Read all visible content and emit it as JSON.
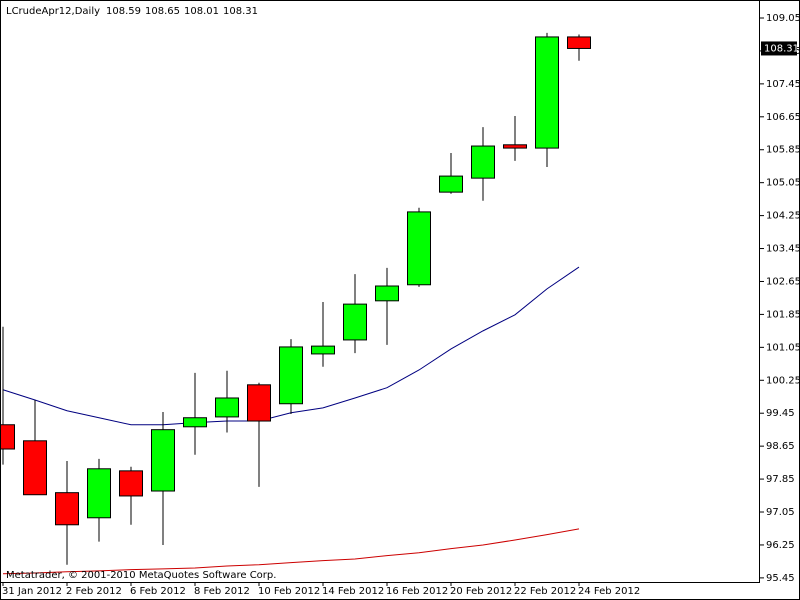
{
  "chart_data": {
    "type": "candlestick",
    "title": "LCrudeApr12,Daily",
    "footer": "Metatrader, © 2001-2010 MetaQuotes Software Corp.",
    "categories": [
      "31 Jan 2012",
      null,
      "2 Feb 2012",
      null,
      "6 Feb 2012",
      null,
      "8 Feb 2012",
      null,
      "10 Feb 2012",
      null,
      "14 Feb 2012",
      null,
      "16 Feb 2012",
      null,
      "20 Feb 2012",
      null,
      "22 Feb 2012",
      null,
      "24 Feb 2012"
    ],
    "open": [
      99.17,
      98.78,
      97.52,
      96.91,
      98.05,
      97.56,
      99.12,
      99.36,
      100.14,
      99.68,
      100.89,
      101.23,
      102.18,
      102.57,
      104.82,
      105.16,
      105.97,
      105.89,
      108.59
    ],
    "high": [
      101.55,
      99.77,
      98.29,
      98.34,
      98.15,
      99.48,
      100.43,
      100.48,
      100.19,
      101.25,
      102.15,
      102.83,
      102.98,
      104.44,
      105.77,
      106.4,
      106.67,
      108.69,
      108.65
    ],
    "low": [
      98.2,
      97.47,
      95.77,
      96.33,
      96.74,
      96.25,
      98.44,
      98.98,
      97.66,
      99.43,
      100.58,
      100.91,
      101.11,
      102.52,
      104.78,
      104.61,
      105.58,
      105.43,
      108.01
    ],
    "close": [
      98.58,
      97.47,
      96.74,
      98.1,
      97.44,
      99.05,
      99.34,
      99.82,
      99.26,
      101.06,
      101.08,
      102.1,
      102.54,
      104.34,
      105.21,
      105.94,
      105.89,
      108.59,
      108.31
    ],
    "up_color": "#00ff00",
    "down_color": "#ff0000",
    "lines": [
      {
        "color": "#000080",
        "values": [
          100.02,
          99.77,
          99.51,
          99.34,
          99.17,
          99.17,
          99.22,
          99.26,
          99.26,
          99.46,
          99.58,
          99.82,
          100.07,
          100.5,
          101.01,
          101.45,
          101.84,
          102.47,
          103.0
        ]
      },
      {
        "color": "#cc0000",
        "values": [
          95.55,
          95.57,
          95.6,
          95.62,
          95.65,
          95.67,
          95.69,
          95.74,
          95.77,
          95.82,
          95.87,
          95.91,
          95.99,
          96.06,
          96.16,
          96.25,
          96.37,
          96.5,
          96.64
        ]
      }
    ],
    "ylim": [
      95.35,
      109.39
    ],
    "yticks": [
      95.45,
      96.25,
      97.05,
      97.85,
      98.65,
      99.45,
      100.25,
      101.05,
      101.85,
      102.65,
      103.45,
      104.25,
      105.05,
      105.85,
      106.65,
      107.45,
      108.25,
      109.05
    ]
  }
}
